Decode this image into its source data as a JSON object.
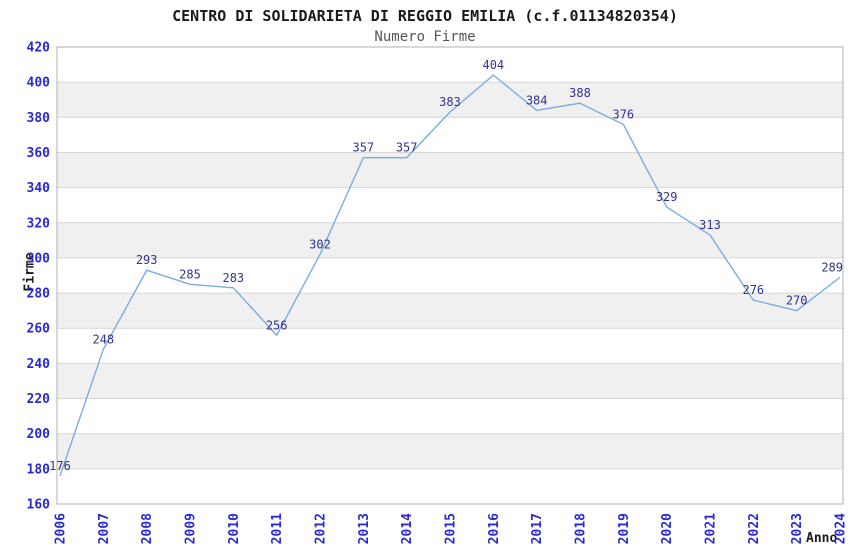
{
  "header": {
    "title": "CENTRO DI SOLIDARIETA DI REGGIO EMILIA (c.f.01134820354)",
    "subtitle": "Numero Firme"
  },
  "chart_data": {
    "type": "line",
    "title": "CENTRO DI SOLIDARIETA DI REGGIO EMILIA (c.f.01134820354)",
    "subtitle": "Numero Firme",
    "xlabel": "Anno",
    "ylabel": "Firme",
    "categories": [
      "2006",
      "2007",
      "2008",
      "2009",
      "2010",
      "2011",
      "2012",
      "2013",
      "2014",
      "2015",
      "2016",
      "2017",
      "2018",
      "2019",
      "2020",
      "2021",
      "2022",
      "2023",
      "2024"
    ],
    "values": [
      176,
      248,
      293,
      285,
      283,
      256,
      302,
      357,
      357,
      383,
      404,
      384,
      388,
      376,
      329,
      313,
      276,
      270,
      289
    ],
    "ylim": [
      160,
      420
    ],
    "ytick_step": 20,
    "grid": true,
    "legend_position": "none",
    "point_markers": false,
    "colors": {
      "line": "#79ade1",
      "band": "#f0f0f0",
      "gridline": "#d6d6d6",
      "plot_border": "#b0b0b0",
      "tick_label": "#2a2ad0",
      "data_label": "#333390",
      "background": "#ffffff"
    }
  }
}
